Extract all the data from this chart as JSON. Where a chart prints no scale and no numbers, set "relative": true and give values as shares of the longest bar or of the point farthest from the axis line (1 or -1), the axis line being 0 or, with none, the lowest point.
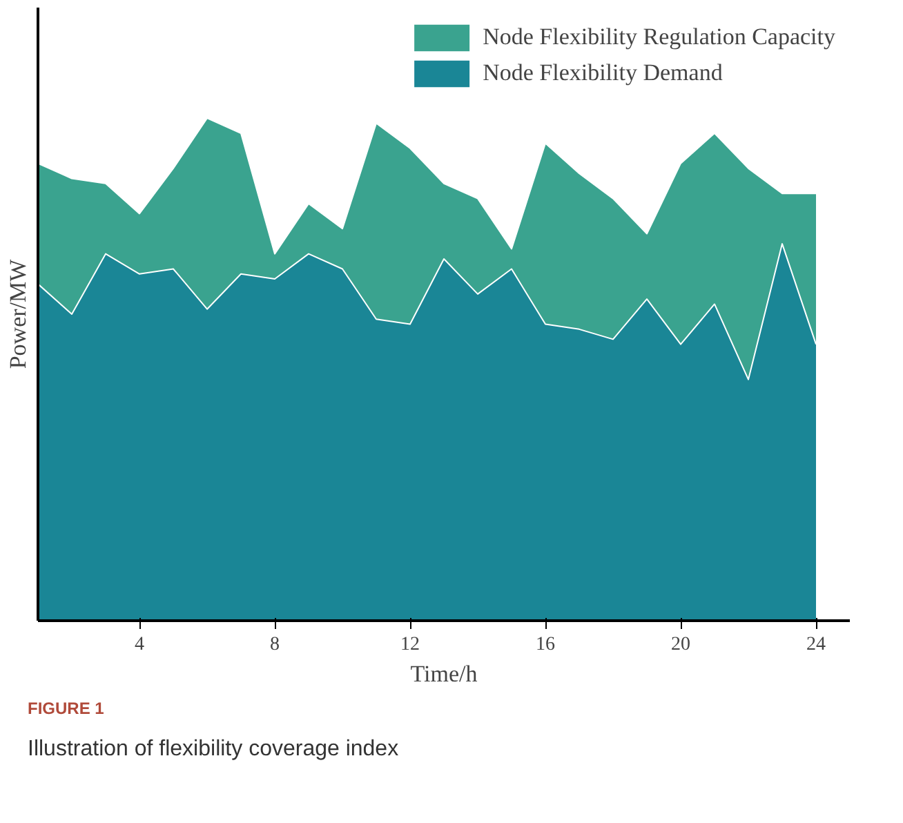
{
  "chart_data": {
    "type": "area",
    "relative": true,
    "xlabel": "Time/h",
    "ylabel": "Power/MW",
    "x": [
      1,
      2,
      3,
      4,
      5,
      6,
      7,
      8,
      9,
      10,
      11,
      12,
      13,
      14,
      15,
      16,
      17,
      18,
      19,
      20,
      21,
      22,
      23,
      24
    ],
    "xlim": [
      1,
      25
    ],
    "xticks": [
      4,
      8,
      12,
      16,
      20,
      24
    ],
    "legend": "top right",
    "grid": false,
    "series": [
      {
        "name": "Node Flexibility Regulation Capacity",
        "color": "#3aa38f",
        "values": [
          0.91,
          0.88,
          0.87,
          0.81,
          0.9,
          1.0,
          0.97,
          0.73,
          0.83,
          0.78,
          0.99,
          0.94,
          0.87,
          0.84,
          0.74,
          0.95,
          0.89,
          0.84,
          0.77,
          0.91,
          0.97,
          0.9,
          0.85,
          0.85
        ]
      },
      {
        "name": "Node Flexibility Demand",
        "color": "#1a8696",
        "values": [
          0.67,
          0.61,
          0.73,
          0.69,
          0.7,
          0.62,
          0.69,
          0.68,
          0.73,
          0.7,
          0.6,
          0.59,
          0.72,
          0.65,
          0.7,
          0.59,
          0.58,
          0.56,
          0.64,
          0.55,
          0.63,
          0.48,
          0.75,
          0.55
        ]
      }
    ],
    "annotations": [
      "FIGURE 1",
      "Illustration of flexibility coverage index"
    ]
  }
}
